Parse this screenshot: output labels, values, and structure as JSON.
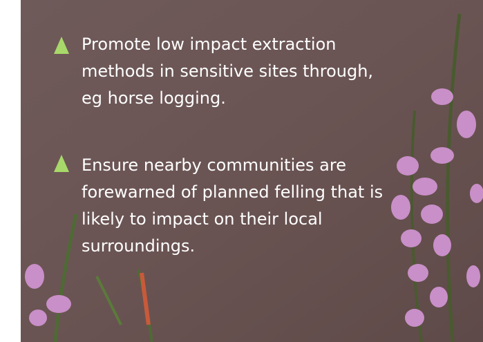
{
  "bullets": [
    {
      "lines": [
        "Promote low impact extraction",
        "methods in sensitive sites through,",
        "eg horse logging."
      ]
    },
    {
      "lines": [
        "Ensure nearby communities are",
        "forewarned of planned felling that is",
        "likely to impact on their local",
        "surroundings."
      ]
    }
  ]
}
